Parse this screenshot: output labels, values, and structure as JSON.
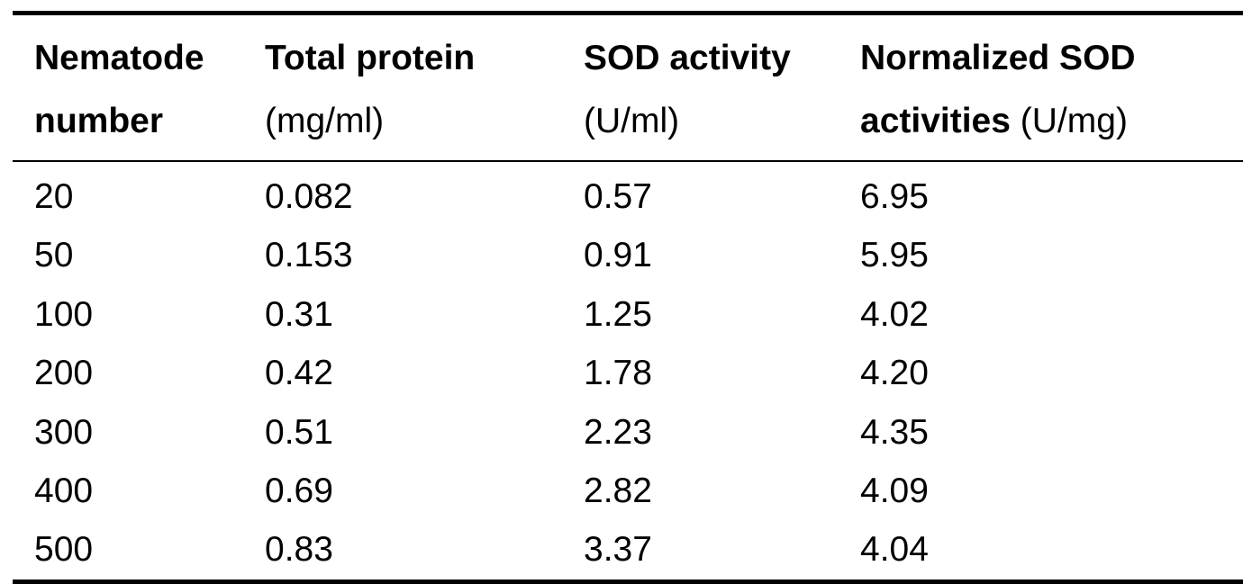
{
  "table": {
    "headers": [
      {
        "line1_bold": "Nematode",
        "line2_bold": "number",
        "line2_normal": ""
      },
      {
        "line1_bold": "Total protein",
        "line2_bold": "",
        "line2_normal": "(mg/ml)"
      },
      {
        "line1_bold": "SOD activity",
        "line2_bold": "",
        "line2_normal": "(U/ml)"
      },
      {
        "line1_bold": "Normalized SOD",
        "line2_bold": "activities",
        "line2_normal": " (U/mg)"
      }
    ],
    "rows": [
      [
        "20",
        "0.082",
        "0.57",
        "6.95"
      ],
      [
        "50",
        "0.153",
        "0.91",
        "5.95"
      ],
      [
        "100",
        "0.31",
        "1.25",
        "4.02"
      ],
      [
        "200",
        "0.42",
        "1.78",
        "4.20"
      ],
      [
        "300",
        "0.51",
        "2.23",
        "4.35"
      ],
      [
        "400",
        "0.69",
        "2.82",
        "4.09"
      ],
      [
        "500",
        "0.83",
        "3.37",
        "4.04"
      ]
    ]
  }
}
